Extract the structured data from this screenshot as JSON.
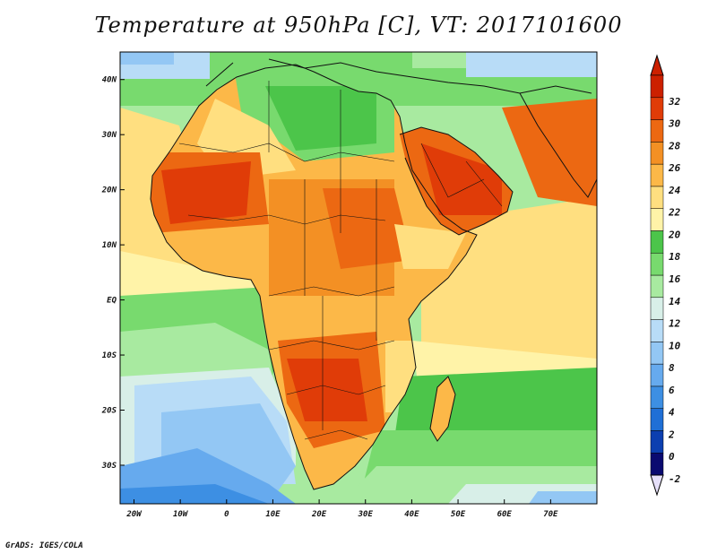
{
  "title": "Temperature at 950hPa [C], VT: 2017101600",
  "credit": "GrADS: IGES/COLA",
  "map": {
    "variable": "Temperature",
    "level": "950hPa",
    "units": "C",
    "valid_time": "2017101600",
    "lon_range": [
      -23,
      80
    ],
    "lat_range": [
      -37,
      45
    ],
    "x_ticks": [
      {
        "lon": -20,
        "label": "20W"
      },
      {
        "lon": -10,
        "label": "10W"
      },
      {
        "lon": 0,
        "label": "0"
      },
      {
        "lon": 10,
        "label": "10E"
      },
      {
        "lon": 20,
        "label": "20E"
      },
      {
        "lon": 30,
        "label": "30E"
      },
      {
        "lon": 40,
        "label": "40E"
      },
      {
        "lon": 50,
        "label": "50E"
      },
      {
        "lon": 60,
        "label": "60E"
      },
      {
        "lon": 70,
        "label": "70E"
      }
    ],
    "y_ticks": [
      {
        "lat": 40,
        "label": "40N"
      },
      {
        "lat": 30,
        "label": "30N"
      },
      {
        "lat": 20,
        "label": "20N"
      },
      {
        "lat": 10,
        "label": "10N"
      },
      {
        "lat": 0,
        "label": "EQ"
      },
      {
        "lat": -10,
        "label": "10S"
      },
      {
        "lat": -20,
        "label": "20S"
      },
      {
        "lat": -30,
        "label": "30S"
      }
    ]
  },
  "colorbar": {
    "levels": [
      "-2",
      "0",
      "2",
      "4",
      "6",
      "8",
      "10",
      "12",
      "14",
      "16",
      "18",
      "20",
      "22",
      "24",
      "26",
      "28",
      "30",
      "32"
    ],
    "colors": [
      "#0a0a70",
      "#0c3fb0",
      "#1f6fd6",
      "#3d8fe3",
      "#66aaee",
      "#93c7f4",
      "#b8dcf7",
      "#d8efe8",
      "#a8eaa0",
      "#78da6e",
      "#4cc54a",
      "#fff3a8",
      "#ffdf80",
      "#fcb848",
      "#f39024",
      "#ec6812",
      "#e03c08",
      "#cc2000"
    ],
    "low_extend_color": "#e6e0fa",
    "high_extend_color": "#cc2000"
  }
}
